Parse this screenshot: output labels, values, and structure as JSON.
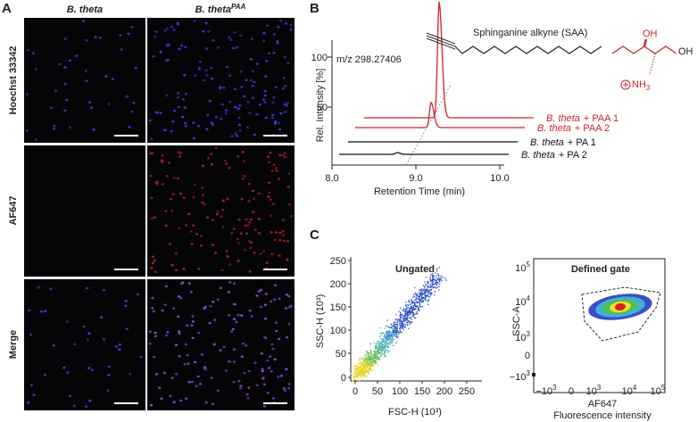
{
  "panel_a": {
    "label": "A",
    "columns": [
      {
        "text": "B. theta"
      },
      {
        "text": "B. theta",
        "sup": "PAA"
      }
    ],
    "rows": [
      "Hoechst 33342",
      "AF647",
      "Merge"
    ]
  },
  "panel_b": {
    "label": "B",
    "compound": "Sphinganine alkyne (SAA)",
    "groups": {
      "oh1": "OH",
      "oh2": "OH",
      "nh3": "NH",
      "nh3_sub": "3"
    },
    "mz": "m/z 298.27406",
    "y_axis_label": "Rel. Intensity [%]",
    "x_axis_label": "Retention Time (min)",
    "yticks": [
      "100",
      "50"
    ],
    "xticks": [
      "8.0",
      "9.0",
      "10.0"
    ],
    "traces": [
      {
        "species": "B. theta",
        "condition": "+ PAA 1",
        "color": "#c8262c"
      },
      {
        "species": "B. theta",
        "condition": "+ PAA 2",
        "color": "#c8262c"
      },
      {
        "species": "B. theta",
        "condition": "+ PA 1",
        "color": "#111111"
      },
      {
        "species": "B. theta",
        "condition": "+ PA 2",
        "color": "#111111"
      }
    ]
  },
  "panel_c": {
    "label": "C",
    "ungated": {
      "title": "Ungated",
      "y_axis_label": "SSC-H (10³)",
      "x_axis_label": "FSC-H (10³)",
      "yticks": [
        "250",
        "200",
        "150",
        "100",
        "50",
        "0"
      ],
      "xticks": [
        "0",
        "50",
        "100",
        "150",
        "200",
        "250"
      ]
    },
    "gated": {
      "title": "Defined gate",
      "y_axis_label": "SSC-A",
      "x_axis_label": "AF647",
      "x_axis_sublabel": "Fluorescence intensity",
      "yticks": [
        {
          "base": "10",
          "exp": "5"
        },
        {
          "base": "10",
          "exp": "4"
        },
        {
          "base": "10",
          "exp": "3"
        },
        {
          "base": "0"
        },
        {
          "base": "−10",
          "exp": "3"
        }
      ],
      "xticks": [
        {
          "base": "−10",
          "exp": "3"
        },
        {
          "base": "0"
        },
        {
          "base": "10",
          "exp": "3"
        },
        {
          "base": "10",
          "exp": "4"
        },
        {
          "base": "10",
          "exp": "5"
        }
      ]
    }
  }
}
